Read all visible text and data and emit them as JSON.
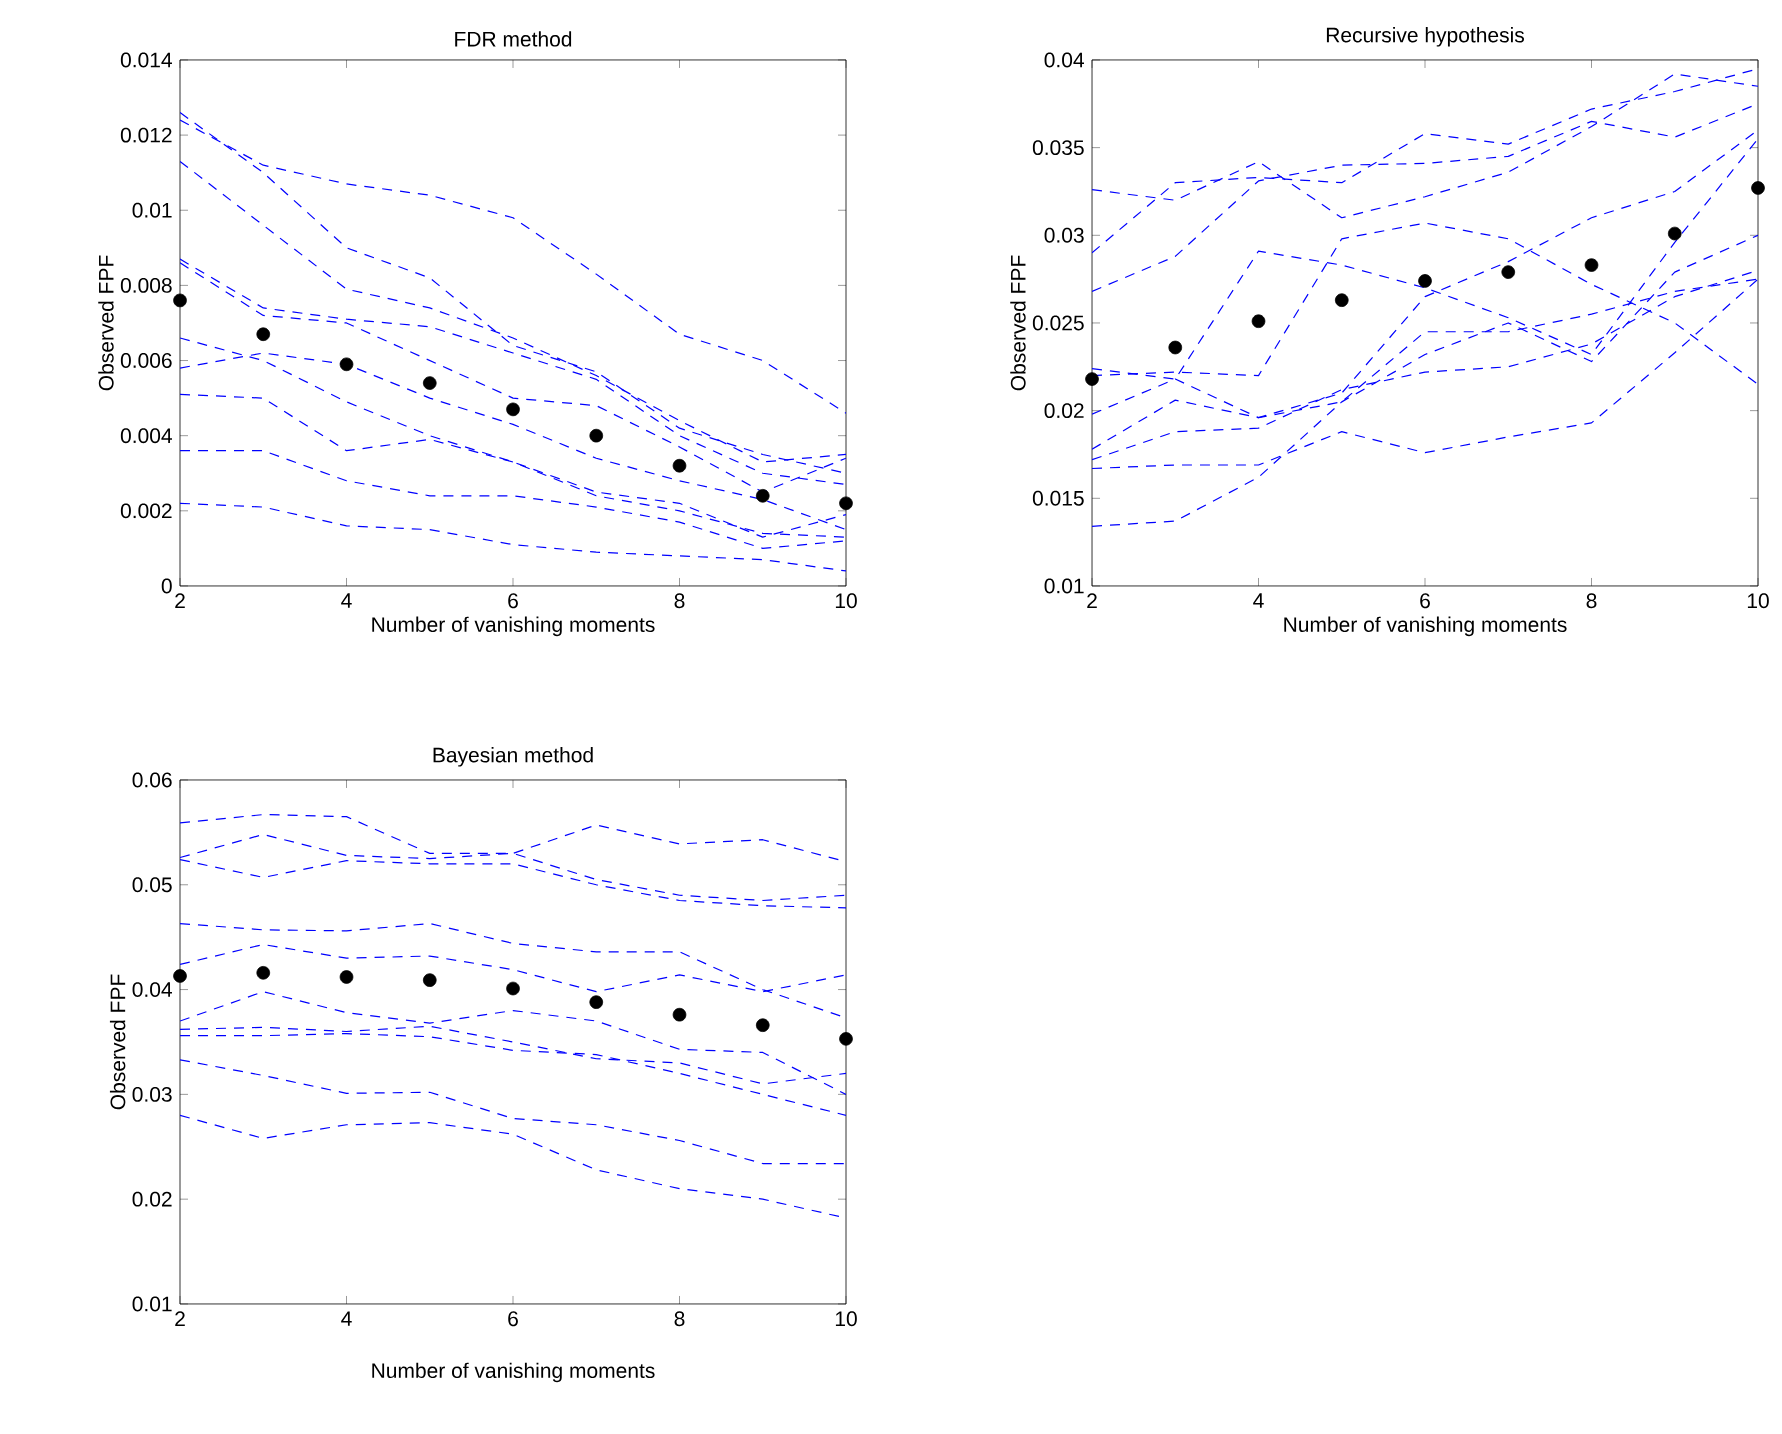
{
  "chart_data": [
    {
      "type": "line",
      "title": "FDR method",
      "xlabel": "Number of vanishing moments",
      "ylabel": "Observed FPF",
      "x": [
        2,
        3,
        4,
        5,
        6,
        7,
        8,
        9,
        10
      ],
      "xlim": [
        2,
        10
      ],
      "xticks": [
        2,
        4,
        6,
        8,
        10
      ],
      "ylim": [
        0,
        0.014
      ],
      "yticks": [
        0,
        0.002,
        0.004,
        0.006,
        0.008,
        0.01,
        0.012,
        0.014
      ],
      "grid": false,
      "line_style": "dashed",
      "series": [
        {
          "color": "#0000ff",
          "values": [
            0.0124,
            0.0112,
            0.0107,
            0.0104,
            0.0098,
            0.0083,
            0.0067,
            0.006,
            0.0046
          ]
        },
        {
          "color": "#0000ff",
          "values": [
            0.0126,
            0.011,
            0.009,
            0.0082,
            0.0064,
            0.0057,
            0.0042,
            0.0035,
            0.003
          ]
        },
        {
          "color": "#0000ff",
          "values": [
            0.0113,
            0.0096,
            0.0079,
            0.0074,
            0.0066,
            0.0056,
            0.0044,
            0.0033,
            0.0035
          ]
        },
        {
          "color": "#0000ff",
          "values": [
            0.0087,
            0.0074,
            0.0071,
            0.0069,
            0.0062,
            0.0055,
            0.004,
            0.003,
            0.0027
          ]
        },
        {
          "color": "#0000ff",
          "values": [
            0.0086,
            0.0072,
            0.007,
            0.006,
            0.005,
            0.0048,
            0.0037,
            0.0025,
            0.0034
          ]
        },
        {
          "color": "#0000ff",
          "values": [
            0.0066,
            0.006,
            0.0049,
            0.004,
            0.0033,
            0.0025,
            0.0022,
            0.0013,
            0.0019
          ]
        },
        {
          "color": "#0000ff",
          "values": [
            0.0058,
            0.0062,
            0.0059,
            0.005,
            0.0043,
            0.0034,
            0.0028,
            0.0023,
            0.0015
          ]
        },
        {
          "color": "#0000ff",
          "values": [
            0.0051,
            0.005,
            0.0036,
            0.0039,
            0.0033,
            0.0024,
            0.002,
            0.0014,
            0.0013
          ]
        },
        {
          "color": "#0000ff",
          "values": [
            0.0036,
            0.0036,
            0.0028,
            0.0024,
            0.0024,
            0.0021,
            0.0017,
            0.001,
            0.0012
          ]
        },
        {
          "color": "#0000ff",
          "values": [
            0.0022,
            0.0021,
            0.0016,
            0.0015,
            0.0011,
            0.0009,
            0.0008,
            0.0007,
            0.0004
          ]
        },
        {
          "type": "scatter",
          "color": "#000000",
          "values": [
            0.0076,
            0.0067,
            0.0059,
            0.0054,
            0.0047,
            0.004,
            0.0032,
            0.0024,
            0.0022
          ]
        }
      ]
    },
    {
      "type": "line",
      "title": "Recursive hypothesis",
      "xlabel": "Number of vanishing moments",
      "ylabel": "Observed FPF",
      "x": [
        2,
        3,
        4,
        5,
        6,
        7,
        8,
        9,
        10
      ],
      "xlim": [
        2,
        10
      ],
      "xticks": [
        2,
        4,
        6,
        8,
        10
      ],
      "ylim": [
        0.01,
        0.04
      ],
      "yticks": [
        0.01,
        0.015,
        0.02,
        0.025,
        0.03,
        0.035,
        0.04
      ],
      "grid": false,
      "line_style": "dashed",
      "series": [
        {
          "color": "#0000ff",
          "values": [
            0.0326,
            0.032,
            0.0342,
            0.031,
            0.0322,
            0.0336,
            0.0362,
            0.0392,
            0.0385
          ]
        },
        {
          "color": "#0000ff",
          "values": [
            0.029,
            0.033,
            0.0333,
            0.033,
            0.0358,
            0.0352,
            0.0372,
            0.0382,
            0.0395
          ]
        },
        {
          "color": "#0000ff",
          "values": [
            0.0268,
            0.0288,
            0.0331,
            0.034,
            0.0341,
            0.0345,
            0.0365,
            0.0356,
            0.0375
          ]
        },
        {
          "color": "#0000ff",
          "values": [
            0.0224,
            0.0218,
            0.0291,
            0.0283,
            0.027,
            0.0253,
            0.0232,
            0.0296,
            0.0355
          ]
        },
        {
          "color": "#0000ff",
          "values": [
            0.022,
            0.0222,
            0.022,
            0.0298,
            0.0307,
            0.0298,
            0.0272,
            0.025,
            0.0215
          ]
        },
        {
          "color": "#0000ff",
          "values": [
            0.0198,
            0.0218,
            0.0196,
            0.021,
            0.0265,
            0.0285,
            0.031,
            0.0325,
            0.036
          ]
        },
        {
          "color": "#0000ff",
          "values": [
            0.0178,
            0.0206,
            0.0196,
            0.0205,
            0.0245,
            0.0245,
            0.0255,
            0.0268,
            0.0275
          ]
        },
        {
          "color": "#0000ff",
          "values": [
            0.0172,
            0.0188,
            0.019,
            0.0212,
            0.0222,
            0.0225,
            0.0238,
            0.0265,
            0.028
          ]
        },
        {
          "color": "#0000ff",
          "values": [
            0.0167,
            0.0169,
            0.0169,
            0.0188,
            0.0176,
            0.0185,
            0.0193,
            0.0233,
            0.0275
          ]
        },
        {
          "color": "#0000ff",
          "values": [
            0.0134,
            0.0137,
            0.0162,
            0.0205,
            0.0232,
            0.025,
            0.0228,
            0.0279,
            0.03
          ]
        },
        {
          "type": "scatter",
          "color": "#000000",
          "values": [
            0.0218,
            0.0236,
            0.0251,
            0.0263,
            0.0274,
            0.0279,
            0.0283,
            0.0301,
            0.0327
          ]
        }
      ]
    },
    {
      "type": "line",
      "title": "Bayesian method",
      "xlabel": "Number of vanishing moments",
      "ylabel": "Observed FPF",
      "x": [
        2,
        3,
        4,
        5,
        6,
        7,
        8,
        9,
        10
      ],
      "xlim": [
        2,
        10
      ],
      "xticks": [
        2,
        4,
        6,
        8,
        10
      ],
      "ylim": [
        0.01,
        0.06
      ],
      "yticks": [
        0.01,
        0.02,
        0.03,
        0.04,
        0.05,
        0.06
      ],
      "grid": false,
      "line_style": "dashed",
      "series": [
        {
          "color": "#0000ff",
          "values": [
            0.0559,
            0.0567,
            0.0565,
            0.053,
            0.053,
            0.0557,
            0.0539,
            0.0543,
            0.0522
          ]
        },
        {
          "color": "#0000ff",
          "values": [
            0.0526,
            0.0548,
            0.0528,
            0.0525,
            0.053,
            0.0505,
            0.049,
            0.0485,
            0.049
          ]
        },
        {
          "color": "#0000ff",
          "values": [
            0.0524,
            0.0507,
            0.0523,
            0.052,
            0.052,
            0.05,
            0.0485,
            0.048,
            0.0478
          ]
        },
        {
          "color": "#0000ff",
          "values": [
            0.0463,
            0.0457,
            0.0456,
            0.0463,
            0.0444,
            0.0436,
            0.0436,
            0.04,
            0.0373
          ]
        },
        {
          "color": "#0000ff",
          "values": [
            0.0424,
            0.0443,
            0.043,
            0.0432,
            0.0419,
            0.0398,
            0.0414,
            0.0398,
            0.0414
          ]
        },
        {
          "color": "#0000ff",
          "values": [
            0.037,
            0.0398,
            0.0378,
            0.0368,
            0.038,
            0.037,
            0.0343,
            0.034,
            0.03
          ]
        },
        {
          "color": "#0000ff",
          "values": [
            0.0362,
            0.0364,
            0.036,
            0.0365,
            0.035,
            0.0334,
            0.033,
            0.031,
            0.032
          ]
        },
        {
          "color": "#0000ff",
          "values": [
            0.0356,
            0.0356,
            0.0358,
            0.0355,
            0.0342,
            0.0338,
            0.032,
            0.03,
            0.028
          ]
        },
        {
          "color": "#0000ff",
          "values": [
            0.0333,
            0.0318,
            0.0301,
            0.0302,
            0.0277,
            0.0271,
            0.0256,
            0.0234,
            0.0234
          ]
        },
        {
          "color": "#0000ff",
          "values": [
            0.028,
            0.0258,
            0.0271,
            0.0273,
            0.0262,
            0.0228,
            0.021,
            0.02,
            0.0182
          ]
        },
        {
          "type": "scatter",
          "color": "#000000",
          "values": [
            0.0413,
            0.0416,
            0.0412,
            0.0409,
            0.0401,
            0.0388,
            0.0376,
            0.0366,
            0.0353
          ]
        }
      ]
    }
  ]
}
